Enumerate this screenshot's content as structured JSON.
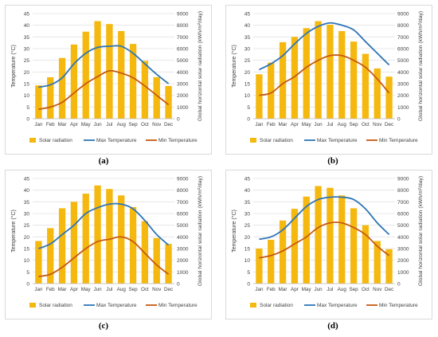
{
  "colors": {
    "bar": "#f5b80f",
    "max": "#2e75b6",
    "min": "#c55a11",
    "grid": "#e2e2e2"
  },
  "panels": [
    {
      "id": "a",
      "caption": "(a)",
      "captionPos": {
        "x": 125,
        "y": 200
      }
    },
    {
      "id": "b",
      "caption": "(b)",
      "captionPos": {
        "x": 418,
        "y": 200
      }
    },
    {
      "id": "c",
      "caption": "(c)",
      "captionPos": {
        "x": 125,
        "y": 407
      }
    },
    {
      "id": "d",
      "caption": "(d)",
      "captionPos": {
        "x": 418,
        "y": 407
      }
    }
  ],
  "chart_data": [
    {
      "type": "bar",
      "panel": "a",
      "categories": [
        "Jan",
        "Feb",
        "Mar",
        "Apr",
        "May",
        "Jun",
        "Jul",
        "Aug",
        "Sep",
        "Oct",
        "Nov",
        "Dec"
      ],
      "ylabel": "Temperature (°C)",
      "y2label": "Global horizontal solar radiation (kWh/m²/day)",
      "ylim": [
        0,
        45
      ],
      "y2lim": [
        0,
        9000
      ],
      "yticks": [
        0,
        5,
        10,
        15,
        20,
        25,
        30,
        35,
        40,
        45
      ],
      "y2ticks": [
        0,
        1000,
        2000,
        3000,
        4000,
        5000,
        6000,
        7000,
        8000,
        9000
      ],
      "series": [
        {
          "name": "Solar radiation",
          "kind": "bar",
          "axis": "right",
          "values": [
            2850,
            3550,
            5200,
            6350,
            7450,
            8350,
            8100,
            7500,
            6400,
            4950,
            3550,
            2800
          ]
        },
        {
          "name": "Max Temperature",
          "kind": "line",
          "axis": "left",
          "values": [
            13.5,
            14.5,
            17.5,
            23.5,
            28,
            30.5,
            31,
            31,
            28,
            23.5,
            19,
            15
          ]
        },
        {
          "name": "Min Temperature",
          "kind": "line",
          "axis": "left",
          "values": [
            4,
            5,
            7,
            11,
            15,
            18,
            20.5,
            19.5,
            17.5,
            14,
            10,
            6
          ]
        }
      ],
      "legend": "bottom"
    },
    {
      "type": "bar",
      "panel": "b",
      "categories": [
        "Jan",
        "Feb",
        "Mar",
        "Apr",
        "May",
        "Jun",
        "Jul",
        "Aug",
        "Sep",
        "Oct",
        "Nov",
        "Dec"
      ],
      "ylabel": "Temperature (°C)",
      "y2label": "Global horizontal solar radiation (kWh/m²/day)",
      "ylim": [
        0,
        45
      ],
      "y2lim": [
        0,
        9000
      ],
      "yticks": [
        0,
        5,
        10,
        15,
        20,
        25,
        30,
        35,
        40,
        45
      ],
      "y2ticks": [
        0,
        1000,
        2000,
        3000,
        4000,
        5000,
        6000,
        7000,
        8000,
        9000
      ],
      "series": [
        {
          "name": "Solar radiation",
          "kind": "bar",
          "axis": "right",
          "values": [
            3800,
            4800,
            6550,
            7000,
            7750,
            8350,
            8050,
            7500,
            6600,
            5550,
            4300,
            3600
          ]
        },
        {
          "name": "Max Temperature",
          "kind": "line",
          "axis": "left",
          "values": [
            21,
            23.5,
            27,
            32,
            36.5,
            39.5,
            41,
            40,
            38,
            33,
            28,
            23
          ]
        },
        {
          "name": "Min Temperature",
          "kind": "line",
          "axis": "left",
          "values": [
            10,
            11,
            15,
            18,
            22,
            25,
            27,
            27,
            25,
            22,
            17,
            11
          ]
        }
      ],
      "legend": "bottom"
    },
    {
      "type": "bar",
      "panel": "c",
      "categories": [
        "Jan",
        "Feb",
        "Mar",
        "Apr",
        "May",
        "Jun",
        "Jul",
        "Aug",
        "Sep",
        "Oct",
        "Nov",
        "Dec"
      ],
      "ylabel": "Temperature (°C)",
      "y2label": "Global horizontal solar radiation (kWh/m²/day)",
      "ylim": [
        0,
        45
      ],
      "y2lim": [
        0,
        9000
      ],
      "yticks": [
        0,
        5,
        10,
        15,
        20,
        25,
        30,
        35,
        40,
        45
      ],
      "y2ticks": [
        0,
        1000,
        2000,
        3000,
        4000,
        5000,
        6000,
        7000,
        8000,
        9000
      ],
      "series": [
        {
          "name": "Solar radiation",
          "kind": "bar",
          "axis": "right",
          "values": [
            3650,
            4750,
            6450,
            7000,
            7700,
            8400,
            8100,
            7550,
            6550,
            5350,
            3900,
            3400
          ]
        },
        {
          "name": "Max Temperature",
          "kind": "line",
          "axis": "left",
          "values": [
            15,
            17,
            21,
            25,
            30,
            32.5,
            34,
            34,
            32,
            27,
            21,
            16.5
          ]
        },
        {
          "name": "Min Temperature",
          "kind": "line",
          "axis": "left",
          "values": [
            3,
            4,
            7,
            11,
            15,
            18,
            19,
            20,
            18,
            13,
            8,
            4
          ]
        }
      ],
      "legend": "bottom"
    },
    {
      "type": "bar",
      "panel": "d",
      "categories": [
        "Jan",
        "Feb",
        "Mar",
        "Apr",
        "May",
        "Jun",
        "Jul",
        "Aug",
        "Sep",
        "Oct",
        "Nov",
        "Dec"
      ],
      "ylabel": "Temperature (°C)",
      "y2label": "Global horizontal solar radiation (kWh/m²/day)",
      "ylim": [
        0,
        45
      ],
      "y2lim": [
        0,
        9000
      ],
      "yticks": [
        0,
        5,
        10,
        15,
        20,
        25,
        30,
        35,
        40,
        45
      ],
      "y2ticks": [
        0,
        1000,
        2000,
        3000,
        4000,
        5000,
        6000,
        7000,
        8000,
        9000
      ],
      "series": [
        {
          "name": "Solar radiation",
          "kind": "bar",
          "axis": "right",
          "values": [
            3000,
            3750,
            5400,
            6400,
            7450,
            8350,
            8200,
            7550,
            6450,
            5000,
            3650,
            2950
          ]
        },
        {
          "name": "Max Temperature",
          "kind": "line",
          "axis": "left",
          "values": [
            19,
            20,
            23,
            28,
            33,
            36,
            37,
            37,
            36,
            32,
            26,
            21
          ]
        },
        {
          "name": "Min Temperature",
          "kind": "line",
          "axis": "left",
          "values": [
            11,
            12,
            14,
            17,
            20,
            24,
            26,
            26,
            24,
            21,
            16,
            12
          ]
        }
      ],
      "legend": "bottom"
    }
  ]
}
